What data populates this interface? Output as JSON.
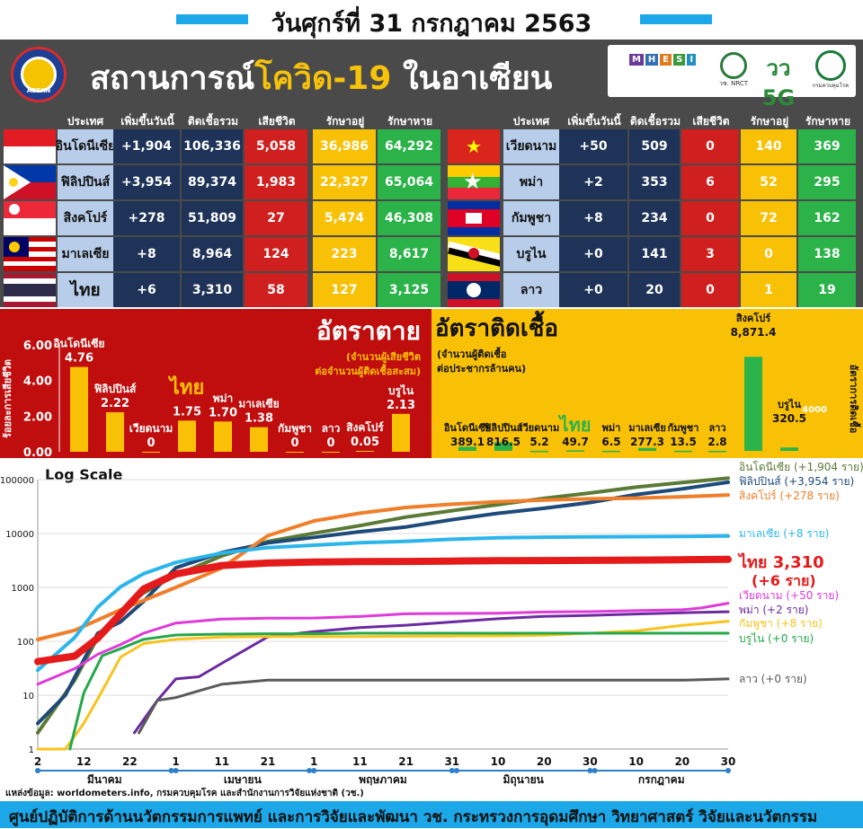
{
  "date": "วันศุกร์ที่ 31 กรกฎาคม 2563",
  "title_part1": "สถานการณ์",
  "title_part2": "โควิด-19",
  "title_part3": " ในอาเซียน",
  "asean_logo_text": "ASEAN",
  "logos": [
    {
      "name": "MHESI",
      "text": "MHESI"
    },
    {
      "name": "NRCT",
      "text": "วช. NRCT"
    },
    {
      "name": "5G",
      "text": "วว 5G"
    },
    {
      "name": "DDC",
      "text": "กรมควบคุมโรค"
    }
  ],
  "table_headers": [
    "ประเทศ",
    "เพิ่มขึ้นวันนี้",
    "ติดเชื้อรวม",
    "เสียชีวิต",
    "รักษาอยู่",
    "รักษาหาย"
  ],
  "table_left": [
    {
      "country": "อินโดนีเซีย",
      "new": "+1,904",
      "total": "106,336",
      "deaths": "5,058",
      "active": "36,986",
      "recovered": "64,292",
      "flag": "indonesia"
    },
    {
      "country": "ฟิลิปปินส์",
      "new": "+3,954",
      "total": "89,374",
      "deaths": "1,983",
      "active": "22,327",
      "recovered": "65,064",
      "flag": "philippines"
    },
    {
      "country": "สิงคโปร์",
      "new": "+278",
      "total": "51,809",
      "deaths": "27",
      "active": "5,474",
      "recovered": "46,308",
      "flag": "singapore"
    },
    {
      "country": "มาเลเซีย",
      "new": "+8",
      "total": "8,964",
      "deaths": "124",
      "active": "223",
      "recovered": "8,617",
      "flag": "malaysia"
    },
    {
      "country": "ไทย",
      "new": "+6",
      "total": "3,310",
      "deaths": "58",
      "active": "127",
      "recovered": "3,125",
      "flag": "thailand"
    }
  ],
  "table_right": [
    {
      "country": "เวียดนาม",
      "new": "+50",
      "total": "509",
      "deaths": "0",
      "active": "140",
      "recovered": "369",
      "flag": "vietnam"
    },
    {
      "country": "พม่า",
      "new": "+2",
      "total": "353",
      "deaths": "6",
      "active": "52",
      "recovered": "295",
      "flag": "myanmar"
    },
    {
      "country": "กัมพูชา",
      "new": "+8",
      "total": "234",
      "deaths": "0",
      "active": "72",
      "recovered": "162",
      "flag": "cambodia"
    },
    {
      "country": "บรูไน",
      "new": "+0",
      "total": "141",
      "deaths": "3",
      "active": "0",
      "recovered": "138",
      "flag": "brunei"
    },
    {
      "country": "ลาว",
      "new": "+0",
      "total": "20",
      "deaths": "0",
      "active": "1",
      "recovered": "19",
      "flag": "laos"
    }
  ],
  "colors": {
    "navy": "#1e3357",
    "red": "#cf1f1f",
    "yellow": "#f9c106",
    "green": "#2bb34a",
    "name_bg": "#b8cdea",
    "header_bg": "#4a4a4a",
    "accent_blue": "#1ba7e8"
  },
  "chart_data": [
    {
      "type": "bar",
      "title": "อัตราตาย",
      "subtitle_line1": "(จำนวนผู้เสียชีวิต",
      "subtitle_line2": "ต่อจำนวนผู้ติดเชื้อสะสม)",
      "ylabel": "ร้อยละการเสียชีวิต",
      "ylim": [
        0,
        6
      ],
      "yticks": [
        "0.00",
        "2.00",
        "4.00",
        "6.00"
      ],
      "categories": [
        "อินโดนีเซีย",
        "ฟิลิปปินส์",
        "เวียดนาม",
        "ไทย",
        "พม่า",
        "มาเลเซีย",
        "กัมพูชา",
        "ลาว",
        "สิงคโปร์",
        "บรูไน"
      ],
      "values": [
        4.76,
        2.22,
        0,
        1.75,
        1.7,
        1.38,
        0,
        0,
        0.05,
        2.13
      ],
      "value_labels": [
        "4.76",
        "2.22",
        "0",
        "1.75",
        "1.70",
        "1.38",
        "0",
        "0",
        "0.05",
        "2.13"
      ],
      "bar_color": "#f9c106"
    },
    {
      "type": "bar",
      "title": "อัตราติดเชื้อ",
      "subtitle_line1": "(จำนวนผู้ติดเชื้อ",
      "subtitle_line2": "ต่อประชากรล้านคน)",
      "ylabel": "อัตราการติดเชื้อ",
      "ylim": [
        0,
        10000
      ],
      "yticks": [
        "4000"
      ],
      "categories": [
        "อินโดนีเซีย",
        "ฟิลิปปินส์",
        "เวียดนาม",
        "ไทย",
        "พม่า",
        "มาเลเซีย",
        "กัมพูชา",
        "ลาว",
        "สิงคโปร์",
        "บรูไน"
      ],
      "values": [
        389.1,
        816.5,
        5.2,
        49.7,
        6.5,
        277.3,
        13.5,
        2.8,
        8871.4,
        320.5
      ],
      "value_labels": [
        "389.1",
        "816.5",
        "5.2",
        "49.7",
        "6.5",
        "277.3",
        "13.5",
        "2.8",
        "8,871.4",
        "320.5"
      ],
      "bar_color": "#2bb34a"
    },
    {
      "type": "line",
      "title": "Log Scale",
      "yscale": "log",
      "ylim": [
        1,
        100000
      ],
      "yticks": [
        "1",
        "10",
        "100",
        "1000",
        "10000",
        "100000"
      ],
      "xlim": [
        "2020-03-02",
        "2020-07-30"
      ],
      "x_tick_labels": [
        "2",
        "12",
        "22",
        "1",
        "11",
        "21",
        "1",
        "11",
        "21",
        "31",
        "10",
        "20",
        "30",
        "10",
        "20",
        "30"
      ],
      "x_ticks": [
        "2020-03-02",
        "2020-03-12",
        "2020-03-22",
        "2020-04-01",
        "2020-04-11",
        "2020-04-21",
        "2020-05-01",
        "2020-05-11",
        "2020-05-21",
        "2020-05-31",
        "2020-06-10",
        "2020-06-20",
        "2020-06-30",
        "2020-07-10",
        "2020-07-20",
        "2020-07-30"
      ],
      "months": [
        "มีนาคม",
        "เมษายน",
        "พฤษภาคม",
        "มิถุนายน",
        "กรกฎาคม"
      ],
      "series": [
        {
          "name": "อินโดนีเซีย",
          "legend": "อินโดนีเซีย (+1,904 ราย)",
          "color": "#5a7a35",
          "width": 4,
          "x": [
            "2020-03-02",
            "2020-03-10",
            "2020-03-15",
            "2020-03-20",
            "2020-03-25",
            "2020-04-01",
            "2020-04-11",
            "2020-04-21",
            "2020-05-01",
            "2020-05-11",
            "2020-05-21",
            "2020-05-31",
            "2020-06-10",
            "2020-06-20",
            "2020-06-30",
            "2020-07-10",
            "2020-07-20",
            "2020-07-30"
          ],
          "y": [
            2,
            19,
            117,
            369,
            790,
            1677,
            3842,
            7135,
            10118,
            14032,
            20162,
            26473,
            34316,
            45029,
            56385,
            72347,
            88214,
            106336
          ]
        },
        {
          "name": "ฟิลิปปินส์",
          "legend": "ฟิลิปปินส์ (+3,954 ราย)",
          "color": "#1e4a7a",
          "width": 4,
          "x": [
            "2020-03-02",
            "2020-03-08",
            "2020-03-15",
            "2020-03-20",
            "2020-03-25",
            "2020-04-01",
            "2020-04-11",
            "2020-04-21",
            "2020-05-01",
            "2020-05-11",
            "2020-05-21",
            "2020-05-31",
            "2020-06-10",
            "2020-06-20",
            "2020-06-30",
            "2020-07-10",
            "2020-07-20",
            "2020-07-30"
          ],
          "y": [
            3,
            10,
            140,
            230,
            552,
            2311,
            4428,
            6710,
            8488,
            10794,
            13221,
            18086,
            23732,
            29400,
            37514,
            52914,
            67456,
            89374
          ]
        },
        {
          "name": "สิงคโปร์",
          "legend": "สิงคโปร์ (+278 ราย)",
          "color": "#ef7f2a",
          "width": 4,
          "x": [
            "2020-03-02",
            "2020-03-10",
            "2020-03-20",
            "2020-04-01",
            "2020-04-11",
            "2020-04-21",
            "2020-05-01",
            "2020-05-11",
            "2020-05-21",
            "2020-05-31",
            "2020-06-10",
            "2020-06-20",
            "2020-06-30",
            "2020-07-10",
            "2020-07-20",
            "2020-07-30"
          ],
          "y": [
            108,
            160,
            385,
            1000,
            2299,
            9125,
            17101,
            23822,
            30426,
            34884,
            38965,
            41833,
            43907,
            45423,
            48035,
            51809
          ]
        },
        {
          "name": "มาเลเซีย",
          "legend": "มาเลเซีย (+8 ราย)",
          "color": "#2cb5ea",
          "width": 4,
          "x": [
            "2020-03-02",
            "2020-03-10",
            "2020-03-15",
            "2020-03-20",
            "2020-03-25",
            "2020-04-01",
            "2020-04-11",
            "2020-04-21",
            "2020-05-01",
            "2020-05-11",
            "2020-05-21",
            "2020-05-31",
            "2020-06-10",
            "2020-06-20",
            "2020-06-30",
            "2020-07-10",
            "2020-07-20",
            "2020-07-30"
          ],
          "y": [
            29,
            117,
            428,
            1030,
            1796,
            2908,
            4346,
            5482,
            6071,
            6726,
            7137,
            7819,
            8338,
            8535,
            8639,
            8729,
            8800,
            8964
          ]
        },
        {
          "name": "ไทย",
          "legend": "ไทย 3,310",
          "legend2": "(+6 ราย)",
          "color": "#e51a1a",
          "width": 8,
          "x": [
            "2020-03-02",
            "2020-03-10",
            "2020-03-15",
            "2020-03-20",
            "2020-03-25",
            "2020-04-01",
            "2020-04-11",
            "2020-04-21",
            "2020-05-01",
            "2020-05-11",
            "2020-05-21",
            "2020-05-31",
            "2020-06-10",
            "2020-06-20",
            "2020-06-30",
            "2020-07-10",
            "2020-07-20",
            "2020-07-30"
          ],
          "y": [
            42,
            53,
            114,
            322,
            934,
            1771,
            2551,
            2826,
            2960,
            3009,
            3037,
            3082,
            3125,
            3146,
            3171,
            3217,
            3255,
            3310
          ]
        },
        {
          "name": "เวียดนาม",
          "legend": "เวียดนาม (+50 ราย)",
          "color": "#e03ad8",
          "width": 3,
          "x": [
            "2020-03-02",
            "2020-03-10",
            "2020-03-15",
            "2020-03-20",
            "2020-03-25",
            "2020-04-01",
            "2020-04-11",
            "2020-04-21",
            "2020-05-01",
            "2020-05-11",
            "2020-05-21",
            "2020-05-31",
            "2020-06-10",
            "2020-06-20",
            "2020-06-30",
            "2020-07-10",
            "2020-07-20",
            "2020-07-24",
            "2020-07-30"
          ],
          "y": [
            16,
            31,
            57,
            87,
            141,
            218,
            258,
            268,
            270,
            288,
            324,
            328,
            332,
            349,
            355,
            370,
            384,
            413,
            509
          ]
        },
        {
          "name": "พม่า",
          "legend": "พม่า (+2 ราย)",
          "color": "#6b2aa0",
          "width": 3,
          "x": [
            "2020-03-23",
            "2020-03-28",
            "2020-04-01",
            "2020-04-06",
            "2020-04-11",
            "2020-04-21",
            "2020-05-01",
            "2020-05-11",
            "2020-05-21",
            "2020-05-31",
            "2020-06-10",
            "2020-06-20",
            "2020-06-30",
            "2020-07-10",
            "2020-07-20",
            "2020-07-30"
          ],
          "y": [
            2,
            8,
            20,
            22,
            39,
            121,
            151,
            180,
            199,
            228,
            262,
            290,
            303,
            321,
            339,
            353
          ]
        },
        {
          "name": "กัมพูชา",
          "legend": "กัมพูชา (+8 ราย)",
          "color": "#f9c31c",
          "width": 3,
          "x": [
            "2020-03-02",
            "2020-03-08",
            "2020-03-12",
            "2020-03-16",
            "2020-03-20",
            "2020-03-25",
            "2020-04-01",
            "2020-04-11",
            "2020-04-21",
            "2020-05-01",
            "2020-05-11",
            "2020-05-21",
            "2020-05-31",
            "2020-06-10",
            "2020-06-20",
            "2020-06-30",
            "2020-07-10",
            "2020-07-20",
            "2020-07-30"
          ],
          "y": [
            1,
            1,
            3,
            12,
            51,
            91,
            109,
            120,
            122,
            122,
            122,
            124,
            125,
            126,
            130,
            141,
            156,
            197,
            234
          ]
        },
        {
          "name": "บรูไน",
          "legend": "บรูไน (+0 ราย)",
          "color": "#24a84a",
          "width": 3,
          "x": [
            "2020-03-09",
            "2020-03-12",
            "2020-03-16",
            "2020-03-20",
            "2020-03-25",
            "2020-04-01",
            "2020-04-11",
            "2020-04-21",
            "2020-05-01",
            "2020-05-11",
            "2020-05-21",
            "2020-05-31",
            "2020-06-10",
            "2020-06-20",
            "2020-06-30",
            "2020-07-10",
            "2020-07-20",
            "2020-07-30"
          ],
          "y": [
            1,
            11,
            54,
            73,
            109,
            131,
            136,
            138,
            138,
            141,
            141,
            141,
            141,
            141,
            141,
            141,
            141,
            141
          ]
        },
        {
          "name": "ลาว",
          "legend": "ลาว (+0 ราย)",
          "color": "#5a5a5a",
          "width": 3,
          "x": [
            "2020-03-24",
            "2020-03-28",
            "2020-04-01",
            "2020-04-06",
            "2020-04-11",
            "2020-04-21",
            "2020-05-01",
            "2020-05-11",
            "2020-05-21",
            "2020-05-31",
            "2020-06-10",
            "2020-06-20",
            "2020-06-30",
            "2020-07-10",
            "2020-07-20",
            "2020-07-30"
          ],
          "y": [
            2,
            8,
            9,
            12,
            16,
            19,
            19,
            19,
            19,
            19,
            19,
            19,
            19,
            19,
            19,
            20
          ]
        }
      ]
    }
  ],
  "source": "แหล่งข้อมูล: worldometers.info, กรมควบคุมโรค และสำนักงานการวิจัยแห่งชาติ (วช.)",
  "footer": "ศูนย์ปฏิบัติการด้านนวัตกรรมการแพทย์ และการวิจัยและพัฒนา  วช.   กระทรวงการอุดมศึกษา วิทยาศาสตร์ วิจัยและนวัตกรรม"
}
